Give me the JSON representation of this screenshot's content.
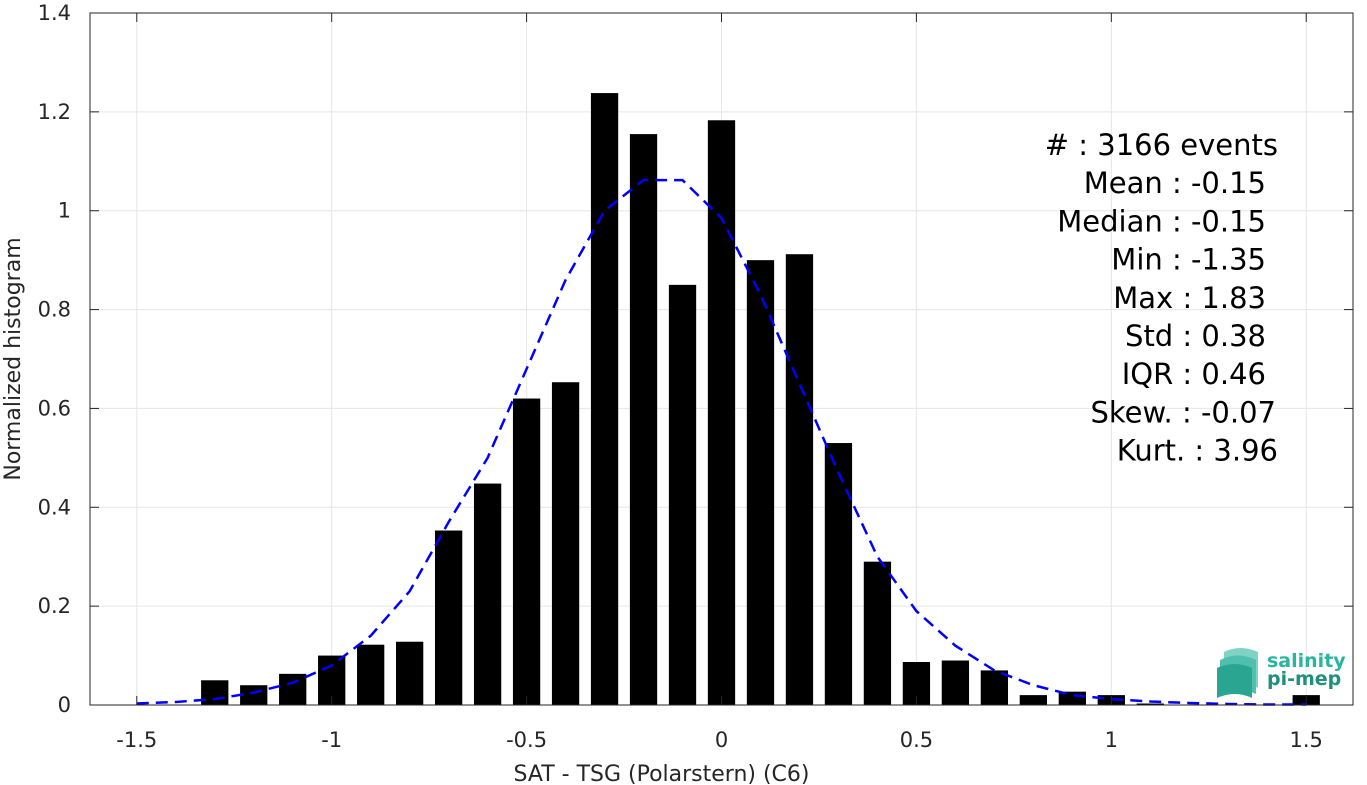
{
  "chart_data": {
    "type": "bar",
    "xlabel": "SAT - TSG (Polarstern) (C6)",
    "ylabel": "Normalized histogram",
    "xlim": [
      -1.62,
      1.62
    ],
    "ylim": [
      0,
      1.4
    ],
    "xticks": [
      -1.5,
      -1,
      -0.5,
      0,
      0.5,
      1,
      1.5
    ],
    "xtick_labels": [
      "-1.5",
      "-1",
      "-0.5",
      "0",
      "0.5",
      "1",
      "1.5"
    ],
    "yticks": [
      0,
      0.2,
      0.4,
      0.6,
      0.8,
      1,
      1.2,
      1.4
    ],
    "ytick_labels": [
      "0",
      "0.2",
      "0.4",
      "0.6",
      "0.8",
      "1",
      "1.2",
      "1.4"
    ],
    "grid": true,
    "bar_color": "#000000",
    "fit_color": "#0000FF",
    "bars": {
      "x": [
        -1.3,
        -1.2,
        -1.1,
        -1.0,
        -0.9,
        -0.8,
        -0.7,
        -0.6,
        -0.5,
        -0.4,
        -0.3,
        -0.2,
        -0.1,
        0.0,
        0.1,
        0.2,
        0.3,
        0.4,
        0.5,
        0.6,
        0.7,
        0.8,
        0.9,
        1.0,
        1.1,
        1.2,
        1.3,
        1.4,
        1.5
      ],
      "values": [
        0.05,
        0.04,
        0.063,
        0.1,
        0.122,
        0.128,
        0.353,
        0.448,
        0.62,
        0.653,
        1.238,
        1.155,
        0.85,
        1.183,
        0.9,
        0.912,
        0.53,
        0.29,
        0.087,
        0.09,
        0.07,
        0.02,
        0.027,
        0.02,
        0.003,
        0.0,
        0.0,
        0.0,
        0.02
      ]
    },
    "fit_curve": {
      "style": "dashed",
      "x": [
        -1.5,
        -1.4,
        -1.3,
        -1.2,
        -1.1,
        -1.0,
        -0.9,
        -0.8,
        -0.7,
        -0.6,
        -0.5,
        -0.4,
        -0.3,
        -0.2,
        -0.1,
        0.0,
        0.1,
        0.2,
        0.3,
        0.4,
        0.5,
        0.6,
        0.7,
        0.8,
        0.9,
        1.0,
        1.1,
        1.2,
        1.3,
        1.4,
        1.5
      ],
      "y": [
        0.003,
        0.006,
        0.012,
        0.025,
        0.045,
        0.08,
        0.14,
        0.23,
        0.37,
        0.5,
        0.68,
        0.86,
        1.0,
        1.062,
        1.062,
        0.985,
        0.83,
        0.65,
        0.47,
        0.3,
        0.19,
        0.12,
        0.07,
        0.04,
        0.02,
        0.012,
        0.007,
        0.004,
        0.002,
        0.001,
        0.001
      ]
    },
    "stats": [
      {
        "label": "#  : 3166 events"
      },
      {
        "label": "Mean : -0.15"
      },
      {
        "label": "Median : -0.15"
      },
      {
        "label": "Min : -1.35"
      },
      {
        "label": "Max : 1.83"
      },
      {
        "label": "Std : 0.38"
      },
      {
        "label": "IQR : 0.46"
      },
      {
        "label": "Skew. : -0.07"
      },
      {
        "label": "Kurt. : 3.96"
      }
    ]
  },
  "logo": {
    "line1": "salinity",
    "line2": "pi-mep",
    "color1": "#2BB5A0",
    "color2": "#1F8F7E"
  }
}
